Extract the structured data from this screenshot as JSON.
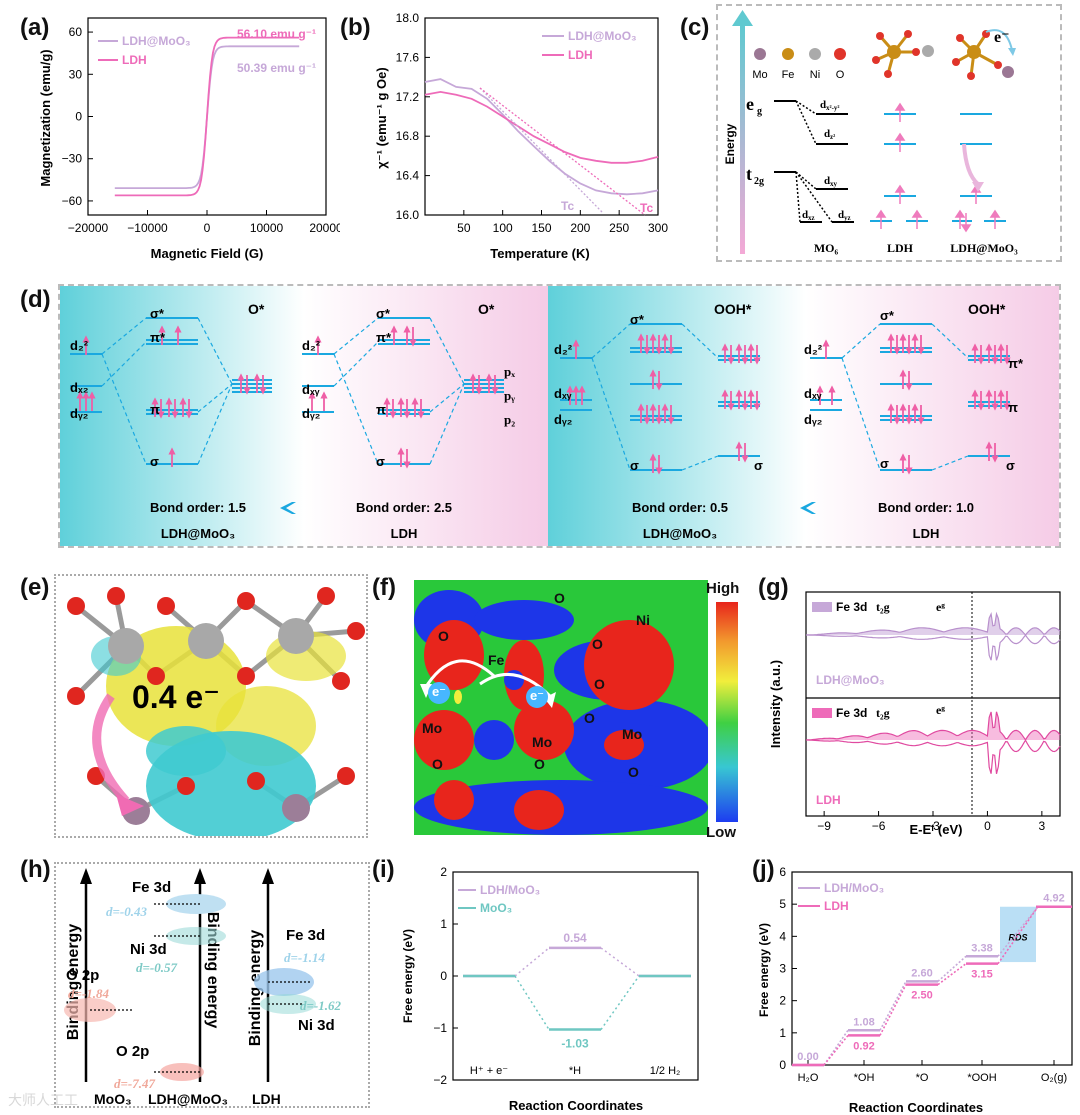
{
  "panel_labels": {
    "a": "(a)",
    "b": "(b)",
    "c": "(c)",
    "d": "(d)",
    "e": "(e)",
    "f": "(f)",
    "g": "(g)",
    "h": "(h)",
    "i": "(i)",
    "j": "(j)"
  },
  "colors": {
    "ldh": "#ee6bb9",
    "ldh_moo3": "#c6a8d8",
    "moo3": "#6fc7c2",
    "cyan": "#1aa8e0",
    "pink": "#ef5fa6"
  },
  "chart_data": [
    {
      "panel": "a",
      "type": "line",
      "xlabel": "Magnetic Field (G)",
      "ylabel": "Magnetization (emu/g)",
      "xlim": [
        -20000,
        20000
      ],
      "ylim": [
        -70,
        70
      ],
      "xticks": [
        "-20000",
        "-10000",
        "0",
        "10000",
        "20000"
      ],
      "yticks": [
        "-60",
        "-30",
        "0",
        "30",
        "60"
      ],
      "series": [
        {
          "name": "LDH@MoO3",
          "legend": "LDH@MoO₃",
          "ms": 50.39,
          "annotation": "50.39 emu g⁻¹"
        },
        {
          "name": "LDH",
          "legend": "LDH",
          "ms": 56.1,
          "annotation": "56.10 emu g⁻¹"
        }
      ]
    },
    {
      "panel": "b",
      "type": "line",
      "xlabel": "Temperature (K)",
      "ylabel": "χ⁻¹ (emu⁻¹ g Oe)",
      "xlim": [
        0,
        300
      ],
      "ylim": [
        16.0,
        18.0
      ],
      "xticks": [
        "50",
        "100",
        "150",
        "200",
        "250",
        "300"
      ],
      "yticks": [
        "16.0",
        "16.4",
        "16.8",
        "17.2",
        "17.6",
        "18.0"
      ],
      "series": [
        {
          "name": "LDH@MoO3",
          "legend": "LDH@MoO₃",
          "tc_label": "Tc",
          "x": [
            0,
            20,
            40,
            60,
            80,
            100,
            120,
            140,
            160,
            180,
            200,
            220,
            240,
            260,
            280,
            300
          ],
          "y": [
            17.35,
            17.38,
            17.3,
            17.28,
            17.18,
            17.02,
            16.85,
            16.7,
            16.55,
            16.42,
            16.32,
            16.25,
            16.22,
            16.21,
            16.22,
            16.25
          ]
        },
        {
          "name": "LDH",
          "legend": "LDH",
          "tc_label": "Tc",
          "x": [
            0,
            20,
            40,
            60,
            80,
            100,
            120,
            140,
            160,
            180,
            200,
            220,
            240,
            260,
            280,
            300
          ],
          "y": [
            17.22,
            17.25,
            17.22,
            17.18,
            17.1,
            17.0,
            16.9,
            16.8,
            16.72,
            16.64,
            16.58,
            16.55,
            16.53,
            16.53,
            16.55,
            16.59
          ]
        }
      ]
    },
    {
      "panel": "i",
      "type": "line",
      "xlabel": "Reaction Coordinates",
      "ylabel": "Free energy (eV)",
      "ylim": [
        -2,
        2
      ],
      "yticks": [
        "-2",
        "-1",
        "0",
        "1",
        "2"
      ],
      "categories": [
        "H⁺ + e⁻",
        "*H",
        "1/2 H₂"
      ],
      "series": [
        {
          "name": "LDH/MoO₃",
          "values": [
            0,
            0.54,
            0
          ],
          "label": "0.54"
        },
        {
          "name": "MoO₃",
          "values": [
            0,
            -1.03,
            0
          ],
          "label": "-1.03"
        }
      ]
    },
    {
      "panel": "j",
      "type": "line",
      "xlabel": "Reaction Coordinates",
      "ylabel": "Free energy (eV)",
      "ylim": [
        0,
        6
      ],
      "yticks": [
        "0",
        "1",
        "2",
        "3",
        "4",
        "5",
        "6"
      ],
      "categories": [
        "H₂O",
        "*OH",
        "*O",
        "*OOH",
        "O₂(g)"
      ],
      "rds_label": "RDS",
      "series": [
        {
          "name": "LDH/MoO₃",
          "values": [
            0,
            1.08,
            2.6,
            3.38,
            4.92
          ],
          "labels": [
            "0.00",
            "1.08",
            "2.60",
            "3.38",
            "4.92"
          ]
        },
        {
          "name": "LDH",
          "values": [
            0,
            0.92,
            2.5,
            3.15,
            4.92
          ],
          "labels": [
            "",
            "0.92",
            "2.50",
            "3.15",
            ""
          ]
        }
      ]
    },
    {
      "panel": "g",
      "type": "area",
      "xlabel": "E-Eᶠ (eV)",
      "ylabel": "Intensity (a.u.)",
      "xlim": [
        -10,
        4
      ],
      "xticks": [
        "-9",
        "-6",
        "-3",
        "0",
        "3"
      ],
      "legend": {
        "top": "Fe 3d",
        "bottom": "Fe 3d",
        "t2g": "t₂g",
        "eg": "eᵍ"
      },
      "series": [
        {
          "name": "LDH@MoO3",
          "label": "LDH@MoO₃"
        },
        {
          "name": "LDH",
          "label": "LDH"
        }
      ]
    }
  ],
  "panel_c": {
    "elements": [
      "Mo",
      "Fe",
      "Ni",
      "O"
    ],
    "energy": "Energy",
    "eg": "e",
    "eg_sub": "g",
    "t2g": "t",
    "t2g_sub": "2g",
    "dx2y2": "d",
    "dx2y2_sub": "x²-y²",
    "dz2": "d",
    "dz2_sub": "z²",
    "dxy": "d",
    "dxy_sub": "xy",
    "dxz": "d",
    "dxz_sub": "xz",
    "dyz": "d",
    "dyz_sub": "yz",
    "col1": "MO₆",
    "col2": "LDH",
    "col3": "LDH@MoO₃",
    "electron": "e⁻"
  },
  "panel_d": {
    "left_title": "O*",
    "right_title": "OOH*",
    "sigma_star": "σ*",
    "pi_star": "π*",
    "pi": "π",
    "sigma": "σ",
    "dz2": "d₂²",
    "dxz": "dₓ₂",
    "dyz": "dᵧ₂",
    "dxy": "dₓᵧ",
    "px": "pₓ",
    "py": "pᵧ",
    "pz": "p₂",
    "bo1": "Bond order: 1.5",
    "bo2": "Bond order: 2.5",
    "bo3": "Bond order: 0.5",
    "bo4": "Bond order: 1.0",
    "lab1": "LDH@MoO₃",
    "lab2": "LDH",
    "lab3": "LDH@MoO₃",
    "lab4": "LDH"
  },
  "panel_e": {
    "charge": "0.4 e⁻"
  },
  "panel_f": {
    "high": "High",
    "low": "Low",
    "atoms": [
      "O",
      "O",
      "Ni",
      "O",
      "Fe",
      "O",
      "Mo",
      "O",
      "Mo",
      "Mo",
      "O",
      "O",
      "O"
    ],
    "electron": "e⁻"
  },
  "panel_h": {
    "binding": "Binding energy",
    "fe3d": "Fe 3d",
    "ni3d": "Ni 3d",
    "o2p": "O 2p",
    "d1": "d=-0.43",
    "d2": "d=-0.57",
    "d3": "d=-1.84",
    "d4": "d=-7.47",
    "d5": "d=-1.14",
    "d6": "d=-1.62",
    "x1": "MoO₃",
    "x2": "LDH@MoO₃",
    "x3": "LDH"
  },
  "watermark": "大师人工工"
}
